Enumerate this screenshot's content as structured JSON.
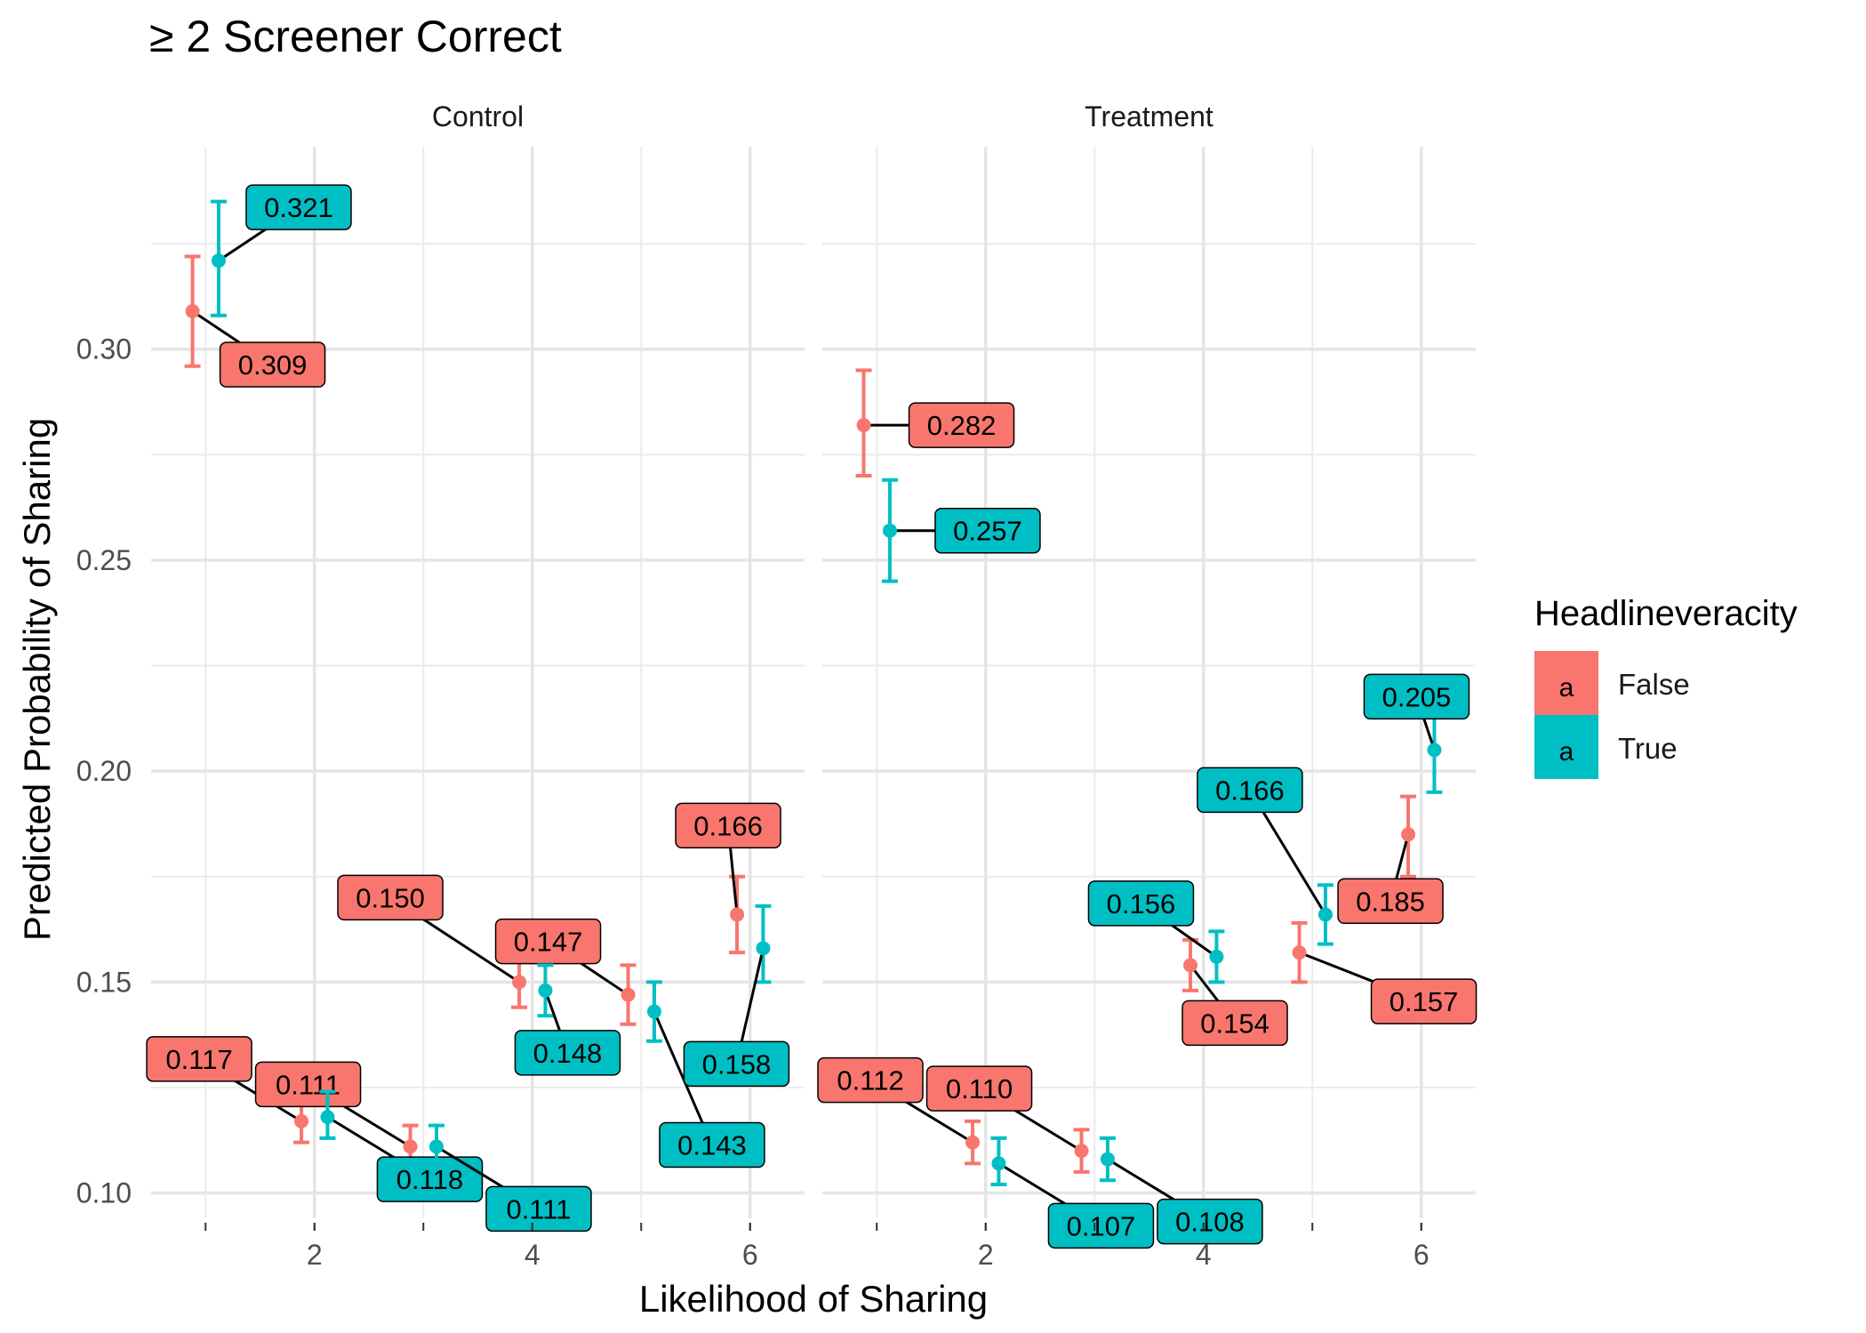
{
  "chart_data": {
    "type": "scatter",
    "title": "≥ 2 Screener Correct",
    "xlabel": "Likelihood of Sharing",
    "ylabel": "Predicted Probability of Sharing",
    "xlim": [
      0.5,
      6.5
    ],
    "ylim": [
      0.094,
      0.348
    ],
    "x_ticks": [
      2,
      4,
      6
    ],
    "x_tick_labels": [
      "2",
      "4",
      "6"
    ],
    "y_ticks": [
      0.1,
      0.15,
      0.2,
      0.25,
      0.3
    ],
    "y_tick_labels": [
      "0.10",
      "0.15",
      "0.20",
      "0.25",
      "0.30"
    ],
    "grid": true,
    "legend": {
      "title": "Headlineveracity",
      "position": "right",
      "key_glyph": "a",
      "entries": [
        {
          "label": "False",
          "color": "#F8766D"
        },
        {
          "label": "True",
          "color": "#00BFC4"
        }
      ]
    },
    "facets": [
      {
        "name": "Control",
        "series": [
          {
            "name": "False",
            "color": "#F8766D",
            "points": [
              {
                "x": 1,
                "y": 0.309,
                "ymin": 0.296,
                "ymax": 0.322,
                "label": "0.309"
              },
              {
                "x": 2,
                "y": 0.117,
                "ymin": 0.112,
                "ymax": 0.122,
                "label": "0.117"
              },
              {
                "x": 3,
                "y": 0.111,
                "ymin": 0.106,
                "ymax": 0.116,
                "label": "0.111"
              },
              {
                "x": 4,
                "y": 0.15,
                "ymin": 0.144,
                "ymax": 0.156,
                "label": "0.150"
              },
              {
                "x": 5,
                "y": 0.147,
                "ymin": 0.14,
                "ymax": 0.154,
                "label": "0.147"
              },
              {
                "x": 6,
                "y": 0.166,
                "ymin": 0.157,
                "ymax": 0.175,
                "label": "0.166"
              }
            ]
          },
          {
            "name": "True",
            "color": "#00BFC4",
            "points": [
              {
                "x": 1,
                "y": 0.321,
                "ymin": 0.308,
                "ymax": 0.335,
                "label": "0.321"
              },
              {
                "x": 2,
                "y": 0.118,
                "ymin": 0.113,
                "ymax": 0.124,
                "label": "0.118"
              },
              {
                "x": 3,
                "y": 0.111,
                "ymin": 0.106,
                "ymax": 0.116,
                "label": "0.111"
              },
              {
                "x": 4,
                "y": 0.148,
                "ymin": 0.142,
                "ymax": 0.154,
                "label": "0.148"
              },
              {
                "x": 5,
                "y": 0.143,
                "ymin": 0.136,
                "ymax": 0.15,
                "label": "0.143"
              },
              {
                "x": 6,
                "y": 0.158,
                "ymin": 0.15,
                "ymax": 0.168,
                "label": "0.158"
              }
            ]
          }
        ]
      },
      {
        "name": "Treatment",
        "series": [
          {
            "name": "False",
            "color": "#F8766D",
            "points": [
              {
                "x": 1,
                "y": 0.282,
                "ymin": 0.27,
                "ymax": 0.295,
                "label": "0.282"
              },
              {
                "x": 2,
                "y": 0.112,
                "ymin": 0.107,
                "ymax": 0.117,
                "label": "0.112"
              },
              {
                "x": 3,
                "y": 0.11,
                "ymin": 0.105,
                "ymax": 0.115,
                "label": "0.110"
              },
              {
                "x": 4,
                "y": 0.154,
                "ymin": 0.148,
                "ymax": 0.16,
                "label": "0.154"
              },
              {
                "x": 5,
                "y": 0.157,
                "ymin": 0.15,
                "ymax": 0.164,
                "label": "0.157"
              },
              {
                "x": 6,
                "y": 0.185,
                "ymin": 0.175,
                "ymax": 0.194,
                "label": "0.185"
              }
            ]
          },
          {
            "name": "True",
            "color": "#00BFC4",
            "points": [
              {
                "x": 1,
                "y": 0.257,
                "ymin": 0.245,
                "ymax": 0.269,
                "label": "0.257"
              },
              {
                "x": 2,
                "y": 0.107,
                "ymin": 0.102,
                "ymax": 0.113,
                "label": "0.107"
              },
              {
                "x": 3,
                "y": 0.108,
                "ymin": 0.103,
                "ymax": 0.113,
                "label": "0.108"
              },
              {
                "x": 4,
                "y": 0.156,
                "ymin": 0.15,
                "ymax": 0.162,
                "label": "0.156"
              },
              {
                "x": 5,
                "y": 0.166,
                "ymin": 0.159,
                "ymax": 0.173,
                "label": "0.166"
              },
              {
                "x": 6,
                "y": 0.205,
                "ymin": 0.195,
                "ymax": 0.215,
                "label": "0.205"
              }
            ]
          }
        ]
      }
    ]
  }
}
